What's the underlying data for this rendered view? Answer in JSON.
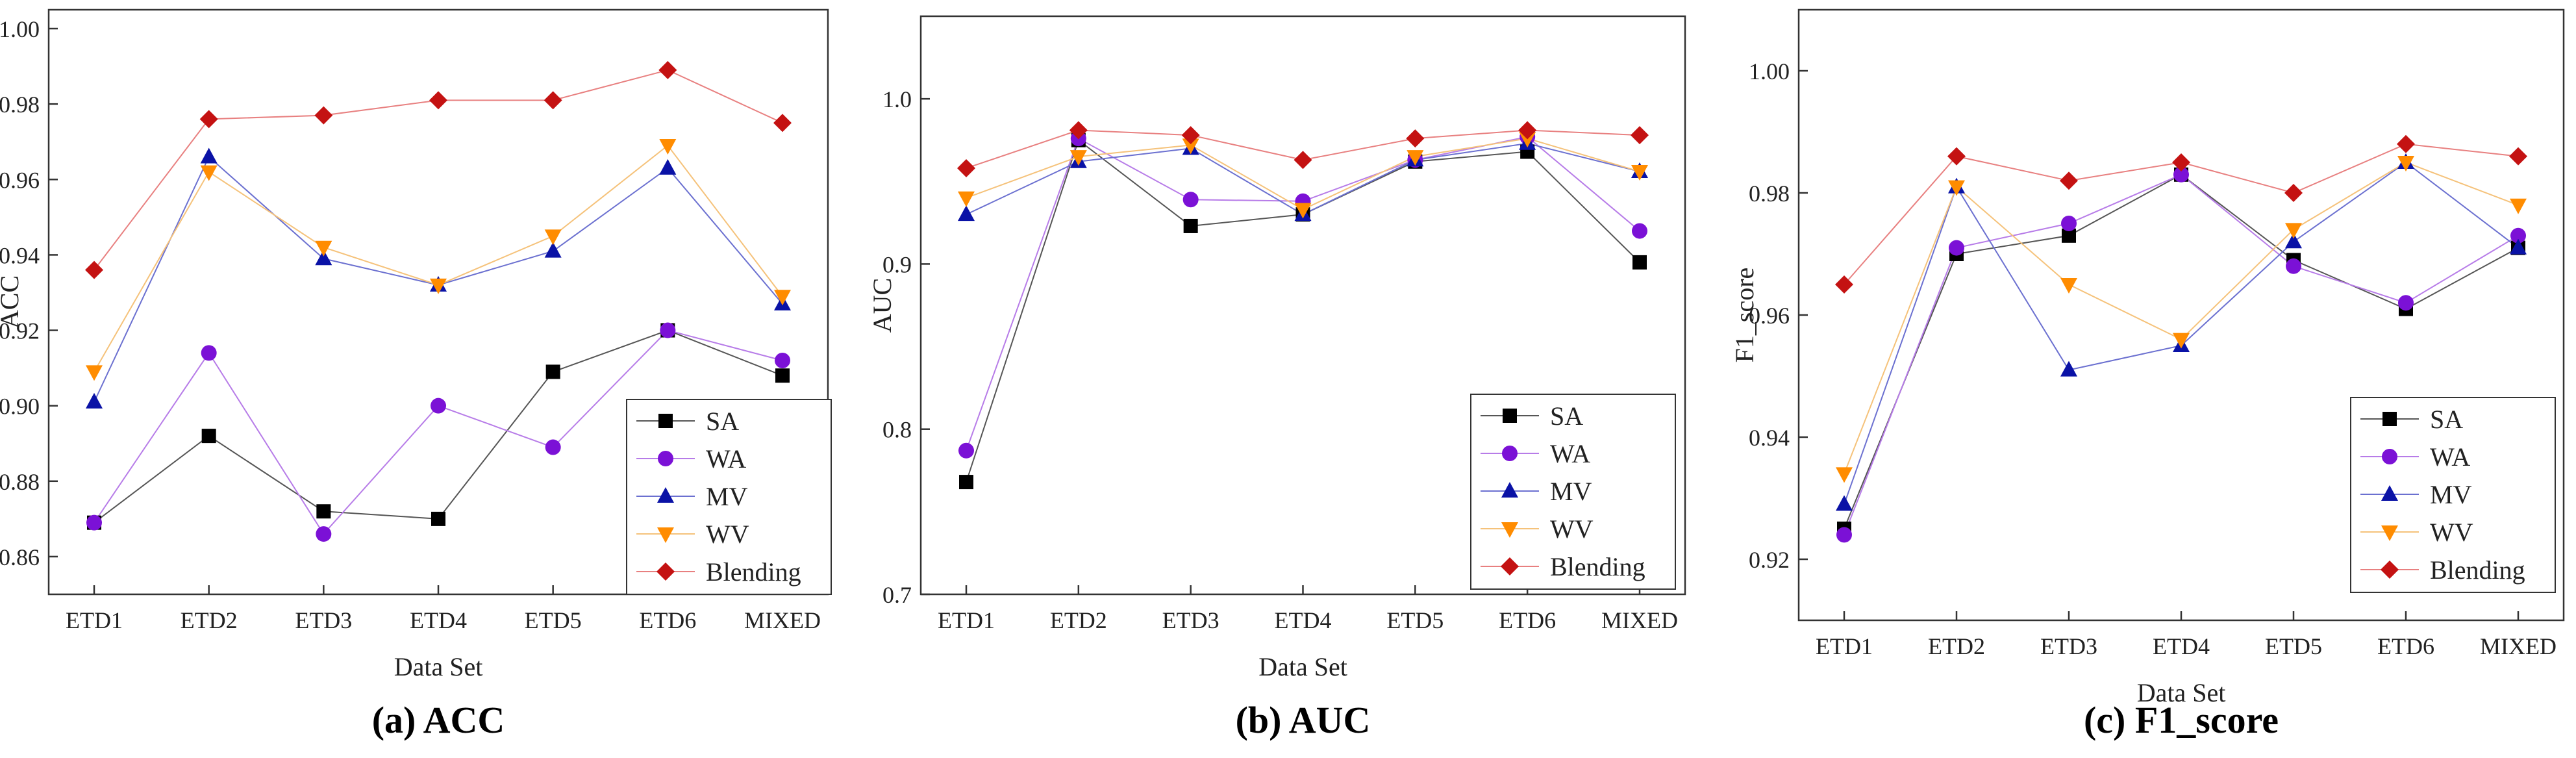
{
  "figure": {
    "captions": [
      "(a) ACC",
      "(b) AUC",
      "(c) F1_score"
    ]
  },
  "chart_data": [
    {
      "type": "line",
      "title": "",
      "xlabel": "Data Set",
      "ylabel": "ACC",
      "categories": [
        "ETD1",
        "ETD2",
        "ETD3",
        "ETD4",
        "ETD5",
        "ETD6",
        "MIXED"
      ],
      "ylim": [
        0.85,
        1.005
      ],
      "yticks": [
        0.86,
        0.88,
        0.9,
        0.92,
        0.94,
        0.96,
        0.98,
        1.0
      ],
      "ytick_labels": [
        "0.86",
        "0.88",
        "0.90",
        "0.92",
        "0.94",
        "0.96",
        "0.98",
        "1.00"
      ],
      "grid": false,
      "legend_position": "bottom-right",
      "series": [
        {
          "name": "SA",
          "marker": "square",
          "color": "#000000",
          "line_color": "#555555",
          "values": [
            0.869,
            0.892,
            0.872,
            0.87,
            0.909,
            0.92,
            0.908
          ]
        },
        {
          "name": "WA",
          "marker": "circle",
          "color": "#7b11d6",
          "line_color": "#b77ce8",
          "values": [
            0.869,
            0.914,
            0.866,
            0.9,
            0.889,
            0.92,
            0.912
          ]
        },
        {
          "name": "MV",
          "marker": "triangle-up",
          "color": "#0a12a6",
          "line_color": "#6b70d0",
          "values": [
            0.901,
            0.966,
            0.939,
            0.932,
            0.941,
            0.963,
            0.927
          ]
        },
        {
          "name": "WV",
          "marker": "triangle-down",
          "color": "#ff8c00",
          "line_color": "#f5c27a",
          "values": [
            0.909,
            0.962,
            0.942,
            0.932,
            0.945,
            0.969,
            0.929
          ]
        },
        {
          "name": "Blending",
          "marker": "diamond",
          "color": "#c41212",
          "line_color": "#e88080",
          "values": [
            0.936,
            0.976,
            0.977,
            0.981,
            0.981,
            0.989,
            0.975
          ]
        }
      ]
    },
    {
      "type": "line",
      "title": "",
      "xlabel": "Data Set",
      "ylabel": "AUC",
      "categories": [
        "ETD1",
        "ETD2",
        "ETD3",
        "ETD4",
        "ETD5",
        "ETD6",
        "MIXED"
      ],
      "ylim": [
        0.7,
        1.05
      ],
      "yticks": [
        0.7,
        0.8,
        0.9,
        1.0
      ],
      "ytick_labels": [
        "0.7",
        "0.8",
        "0.9",
        "1.0"
      ],
      "grid": false,
      "legend_position": "bottom-right",
      "series": [
        {
          "name": "SA",
          "marker": "square",
          "color": "#000000",
          "line_color": "#555555",
          "values": [
            0.768,
            0.975,
            0.923,
            0.93,
            0.962,
            0.968,
            0.901
          ]
        },
        {
          "name": "WA",
          "marker": "circle",
          "color": "#7b11d6",
          "line_color": "#b77ce8",
          "values": [
            0.787,
            0.976,
            0.939,
            0.938,
            0.963,
            0.977,
            0.92
          ]
        },
        {
          "name": "MV",
          "marker": "triangle-up",
          "color": "#0a12a6",
          "line_color": "#6b70d0",
          "values": [
            0.93,
            0.962,
            0.97,
            0.93,
            0.963,
            0.973,
            0.956
          ]
        },
        {
          "name": "WV",
          "marker": "triangle-down",
          "color": "#ff8c00",
          "line_color": "#f5c27a",
          "values": [
            0.94,
            0.965,
            0.972,
            0.933,
            0.965,
            0.976,
            0.956
          ]
        },
        {
          "name": "Blending",
          "marker": "diamond",
          "color": "#c41212",
          "line_color": "#e88080",
          "values": [
            0.958,
            0.981,
            0.978,
            0.963,
            0.976,
            0.981,
            0.978
          ]
        }
      ]
    },
    {
      "type": "line",
      "title": "",
      "xlabel": "Data Set",
      "ylabel": "F1_score",
      "categories": [
        "ETD1",
        "ETD2",
        "ETD3",
        "ETD4",
        "ETD5",
        "ETD6",
        "MIXED"
      ],
      "ylim": [
        0.91,
        1.01
      ],
      "yticks": [
        0.92,
        0.94,
        0.96,
        0.98,
        1.0
      ],
      "ytick_labels": [
        "0.92",
        "0.94",
        "0.96",
        "0.98",
        "1.00"
      ],
      "grid": false,
      "legend_position": "bottom-right",
      "series": [
        {
          "name": "SA",
          "marker": "square",
          "color": "#000000",
          "line_color": "#555555",
          "values": [
            0.925,
            0.97,
            0.973,
            0.983,
            0.969,
            0.961,
            0.971
          ]
        },
        {
          "name": "WA",
          "marker": "circle",
          "color": "#7b11d6",
          "line_color": "#b77ce8",
          "values": [
            0.924,
            0.971,
            0.975,
            0.983,
            0.968,
            0.962,
            0.973
          ]
        },
        {
          "name": "MV",
          "marker": "triangle-up",
          "color": "#0a12a6",
          "line_color": "#6b70d0",
          "values": [
            0.929,
            0.981,
            0.951,
            0.955,
            0.972,
            0.985,
            0.971
          ]
        },
        {
          "name": "WV",
          "marker": "triangle-down",
          "color": "#ff8c00",
          "line_color": "#f5c27a",
          "values": [
            0.934,
            0.981,
            0.965,
            0.956,
            0.974,
            0.985,
            0.978
          ]
        },
        {
          "name": "Blending",
          "marker": "diamond",
          "color": "#c41212",
          "line_color": "#e88080",
          "values": [
            0.965,
            0.986,
            0.982,
            0.985,
            0.98,
            0.988,
            0.986
          ]
        }
      ]
    }
  ]
}
